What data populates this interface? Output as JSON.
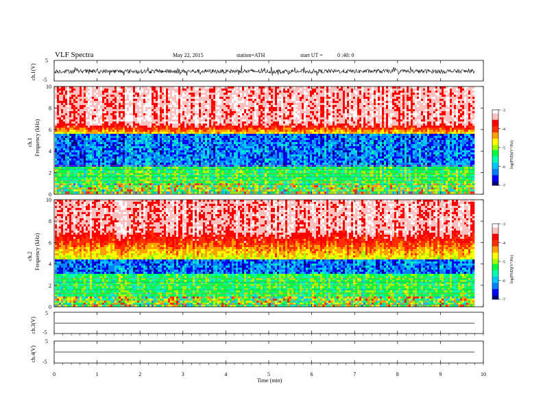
{
  "header": {
    "title": "VLF  Spectra",
    "date": "May 22, 2015",
    "station": "station=ATH",
    "start_label": "start  UT =",
    "start_time": "0 :40: 0"
  },
  "colors": {
    "spectro_scale": [
      "#000080",
      "#0000ff",
      "#0080ff",
      "#00c8ff",
      "#00ffb0",
      "#00ff40",
      "#a0ff00",
      "#ffff00",
      "#ffa000",
      "#ff3000",
      "#ff0000",
      "#ffc0c0",
      "#ffffff"
    ]
  },
  "chart_data": [
    {
      "type": "line",
      "panel": "ch1-waveform",
      "ylabel": "ch.1(V)",
      "ylim": [
        -5,
        5
      ],
      "ytick_labels": [
        "5",
        "-5"
      ],
      "x_range_min": [
        0,
        9.8
      ],
      "description_values": {
        "mean": -0.3,
        "amplitude": 0.5
      }
    },
    {
      "type": "heatmap",
      "panel": "ch1-spectrogram",
      "ylabel": "Frequency  (kHz)",
      "channel_label": "ch.1",
      "ylim": [
        0,
        10
      ],
      "ytick_labels": [
        "0",
        "2",
        "4",
        "6",
        "8",
        "10"
      ],
      "x_range_min": [
        0,
        9.8
      ],
      "colorbar": {
        "label": "log(PSD)(V²/Hz)",
        "range": [
          -7,
          -3
        ],
        "tick_labels": [
          "-3",
          "-4",
          "-5",
          "-6",
          "-7"
        ]
      },
      "profile": {
        "red_above_khz": 6.5,
        "blue_band_khz": [
          2.5,
          5.5
        ]
      }
    },
    {
      "type": "heatmap",
      "panel": "ch2-spectrogram",
      "ylabel": "Frequency  (kHz)",
      "channel_label": "ch.2",
      "ylim": [
        0,
        10
      ],
      "ytick_labels": [
        "0",
        "2",
        "4",
        "6",
        "8",
        "10"
      ],
      "x_range_min": [
        0,
        9.8
      ],
      "colorbar": {
        "label": "log(PSD)(V²/Hz)",
        "range": [
          -7,
          -3
        ],
        "tick_labels": [
          "-3",
          "-4",
          "-5",
          "-6",
          "-7"
        ]
      },
      "profile": {
        "red_above_khz": 7.0,
        "blue_band_khz": [
          3.0,
          4.5
        ]
      }
    },
    {
      "type": "line",
      "panel": "ch3-waveform",
      "ylabel": "ch.3(V)",
      "ylim": [
        -5,
        5
      ],
      "ytick_labels": [
        "5",
        "-5"
      ],
      "x_range_min": [
        0,
        9.8
      ],
      "description_values": {
        "mean": -0.1,
        "amplitude": 0.05
      }
    },
    {
      "type": "line",
      "panel": "ch4-waveform",
      "ylabel": "ch.4(V)",
      "ylim": [
        -5,
        5
      ],
      "ytick_labels": [
        "5",
        "-5"
      ],
      "x_range_min": [
        0,
        9.8
      ],
      "description_values": {
        "mean": 0.0,
        "amplitude": 0.0
      }
    }
  ],
  "xaxis": {
    "label": "Time  (min)",
    "xlim": [
      0,
      10
    ],
    "tick_labels": [
      "0",
      "1",
      "2",
      "3",
      "4",
      "5",
      "6",
      "7",
      "8",
      "9",
      "10"
    ]
  }
}
